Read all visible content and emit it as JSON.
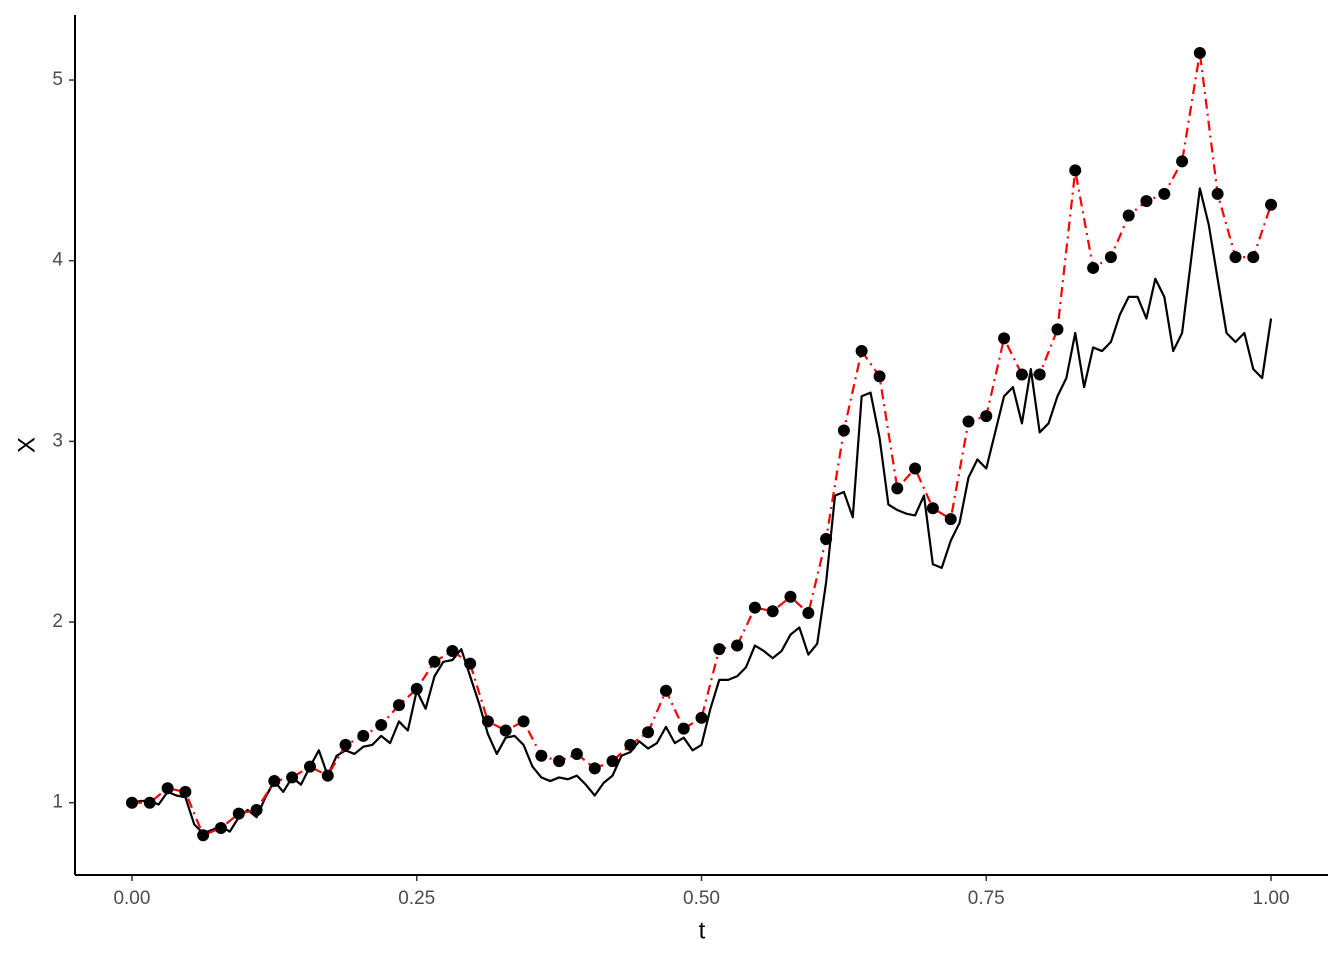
{
  "chart_data": {
    "type": "line",
    "xlabel": "t",
    "ylabel": "X",
    "xlim": [
      -0.05,
      1.05
    ],
    "ylim": [
      0.6,
      5.36
    ],
    "xticks": [
      {
        "value": 0,
        "label": "0.00"
      },
      {
        "value": 0.25,
        "label": "0.25"
      },
      {
        "value": 0.5,
        "label": "0.50"
      },
      {
        "value": 0.75,
        "label": "0.75"
      },
      {
        "value": 1,
        "label": "1.00"
      }
    ],
    "yticks": [
      1,
      2,
      3,
      4,
      5
    ],
    "grid": false,
    "series": [
      {
        "color": "#000000",
        "linestyle": "solid",
        "markers": false,
        "x": [
          0,
          0.0078,
          0.0156,
          0.0234,
          0.0313,
          0.0391,
          0.0469,
          0.0547,
          0.0625,
          0.0703,
          0.0781,
          0.0859,
          0.0938,
          0.1016,
          0.1094,
          0.1172,
          0.125,
          0.1328,
          0.1406,
          0.1484,
          0.1563,
          0.1641,
          0.1719,
          0.1797,
          0.1875,
          0.1953,
          0.2031,
          0.2109,
          0.2188,
          0.2266,
          0.2344,
          0.2422,
          0.25,
          0.2578,
          0.2656,
          0.2734,
          0.2813,
          0.2891,
          0.2969,
          0.3047,
          0.3125,
          0.3203,
          0.3281,
          0.3359,
          0.3438,
          0.3516,
          0.3594,
          0.3672,
          0.375,
          0.3828,
          0.3906,
          0.3984,
          0.4063,
          0.4141,
          0.4219,
          0.4297,
          0.4375,
          0.4453,
          0.4531,
          0.4609,
          0.4688,
          0.4766,
          0.4844,
          0.4922,
          0.5,
          0.5078,
          0.5156,
          0.5234,
          0.5313,
          0.5391,
          0.5469,
          0.5547,
          0.5625,
          0.5703,
          0.5781,
          0.5859,
          0.5938,
          0.6016,
          0.6094,
          0.6172,
          0.625,
          0.6328,
          0.6406,
          0.6484,
          0.6563,
          0.6641,
          0.6719,
          0.6797,
          0.6875,
          0.6953,
          0.7031,
          0.7109,
          0.7188,
          0.7266,
          0.7344,
          0.7422,
          0.75,
          0.7578,
          0.7656,
          0.7734,
          0.7813,
          0.7891,
          0.7969,
          0.8047,
          0.8125,
          0.8203,
          0.8281,
          0.8359,
          0.8438,
          0.8516,
          0.8594,
          0.8672,
          0.875,
          0.8828,
          0.8906,
          0.8984,
          0.9063,
          0.9141,
          0.9219,
          0.9297,
          0.9375,
          0.9453,
          0.9531,
          0.9609,
          0.9688,
          0.9766,
          0.9844,
          0.9922,
          1
        ],
        "values": [
          1.0,
          1.01,
          1.01,
          0.99,
          1.06,
          1.04,
          1.03,
          0.88,
          0.83,
          0.85,
          0.87,
          0.84,
          0.92,
          0.96,
          0.92,
          1.03,
          1.12,
          1.06,
          1.14,
          1.1,
          1.2,
          1.29,
          1.15,
          1.26,
          1.29,
          1.27,
          1.31,
          1.32,
          1.37,
          1.33,
          1.45,
          1.4,
          1.62,
          1.52,
          1.7,
          1.78,
          1.79,
          1.85,
          1.7,
          1.55,
          1.38,
          1.27,
          1.36,
          1.37,
          1.32,
          1.2,
          1.14,
          1.12,
          1.14,
          1.13,
          1.15,
          1.1,
          1.04,
          1.11,
          1.15,
          1.26,
          1.28,
          1.34,
          1.3,
          1.33,
          1.42,
          1.33,
          1.36,
          1.29,
          1.32,
          1.52,
          1.68,
          1.68,
          1.7,
          1.75,
          1.87,
          1.84,
          1.8,
          1.84,
          1.93,
          1.97,
          1.82,
          1.88,
          2.22,
          2.7,
          2.72,
          2.58,
          3.25,
          3.27,
          3.02,
          2.65,
          2.62,
          2.6,
          2.59,
          2.7,
          2.32,
          2.3,
          2.45,
          2.55,
          2.8,
          2.9,
          2.85,
          3.05,
          3.25,
          3.3,
          3.1,
          3.4,
          3.05,
          3.1,
          3.25,
          3.35,
          3.6,
          3.3,
          3.52,
          3.5,
          3.55,
          3.7,
          3.8,
          3.8,
          3.68,
          3.9,
          3.8,
          3.5,
          3.6,
          4.0,
          4.4,
          4.2,
          3.9,
          3.6,
          3.55,
          3.6,
          3.4,
          3.35,
          3.68
        ]
      },
      {
        "color": "#ff0000",
        "linestyle": "dashdot",
        "markers": true,
        "marker_color": "#000000",
        "x": [
          0,
          0.0156,
          0.0313,
          0.0469,
          0.0625,
          0.0781,
          0.0938,
          0.1094,
          0.125,
          0.1406,
          0.1563,
          0.1719,
          0.1875,
          0.2031,
          0.2188,
          0.2344,
          0.25,
          0.2656,
          0.2813,
          0.2969,
          0.3125,
          0.3281,
          0.3438,
          0.3594,
          0.375,
          0.3906,
          0.4063,
          0.4219,
          0.4375,
          0.4531,
          0.4688,
          0.4844,
          0.5,
          0.5156,
          0.5313,
          0.5469,
          0.5625,
          0.5781,
          0.5938,
          0.6094,
          0.625,
          0.6406,
          0.6563,
          0.6719,
          0.6875,
          0.7031,
          0.7188,
          0.7344,
          0.75,
          0.7656,
          0.7813,
          0.7969,
          0.8125,
          0.8281,
          0.8438,
          0.8594,
          0.875,
          0.8906,
          0.9063,
          0.9219,
          0.9375,
          0.9531,
          0.9688,
          0.9844,
          1
        ],
        "values": [
          1.0,
          1.0,
          1.08,
          1.06,
          0.82,
          0.86,
          0.94,
          0.96,
          1.12,
          1.14,
          1.2,
          1.15,
          1.32,
          1.37,
          1.43,
          1.54,
          1.63,
          1.78,
          1.84,
          1.77,
          1.45,
          1.4,
          1.45,
          1.26,
          1.23,
          1.27,
          1.19,
          1.23,
          1.32,
          1.39,
          1.62,
          1.41,
          1.47,
          1.85,
          1.87,
          2.08,
          2.06,
          2.14,
          2.05,
          2.46,
          3.06,
          3.5,
          3.36,
          2.74,
          2.85,
          2.63,
          2.57,
          3.11,
          3.14,
          3.57,
          3.37,
          3.37,
          3.62,
          4.5,
          3.96,
          4.02,
          4.25,
          4.33,
          4.37,
          4.55,
          5.15,
          4.37,
          4.02,
          4.02,
          4.31
        ]
      }
    ]
  }
}
